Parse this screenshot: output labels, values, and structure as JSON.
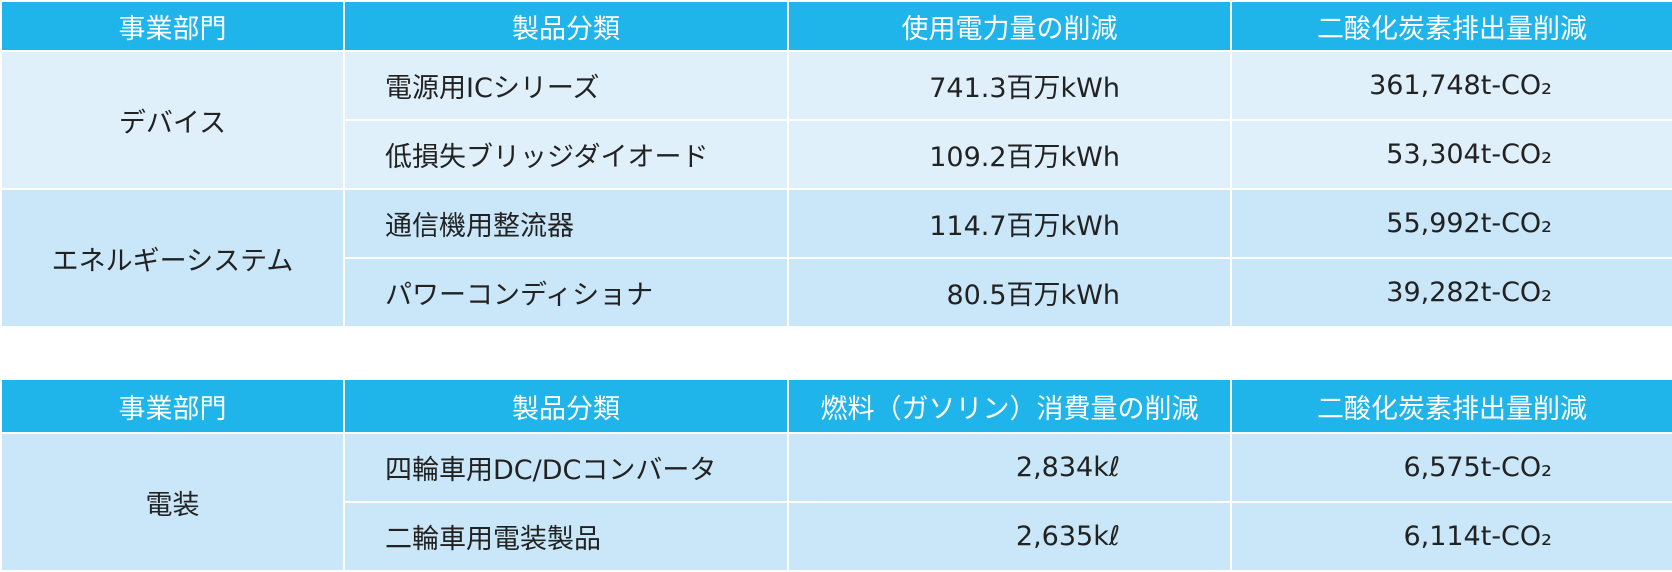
{
  "tables": [
    {
      "header": [
        "事業部門",
        "製品分類",
        "使用電力量の削減",
        "二酸化炭素排出量削減"
      ],
      "groups": [
        {
          "segment": "デバイス",
          "rows": [
            [
              "電源用ICシリーズ",
              "741.3百万kWh",
              "361,748t-CO₂"
            ],
            [
              "低損失ブリッジダイオード",
              "109.2百万kWh",
              "53,304t-CO₂"
            ]
          ]
        },
        {
          "segment": "エネルギーシステム",
          "rows": [
            [
              "通信機用整流器",
              "114.7百万kWh",
              "55,992t-CO₂"
            ],
            [
              "パワーコンディショナ",
              "80.5百万kWh",
              "39,282t-CO₂"
            ]
          ]
        }
      ]
    },
    {
      "header": [
        "事業部門",
        "製品分類",
        "燃料（ガソリン）消費量の削減",
        "二酸化炭素排出量削減"
      ],
      "groups": [
        {
          "segment": "電装",
          "rows": [
            [
              "四輪車用DC/DCコンバータ",
              "2,834kℓ",
              "6,575t-CO₂"
            ],
            [
              "二輪車用電装製品",
              "2,635kℓ",
              "6,114t-CO₂"
            ]
          ]
        }
      ]
    }
  ]
}
